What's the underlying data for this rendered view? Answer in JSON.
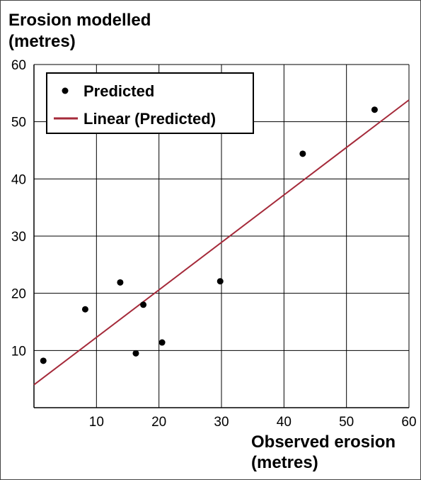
{
  "chart_data": {
    "type": "scatter",
    "ylabel_lines": [
      "Erosion modelled",
      "(metres)"
    ],
    "xlabel_lines": [
      "Observed erosion",
      "(metres)"
    ],
    "xlim": [
      0,
      60
    ],
    "ylim": [
      0,
      60
    ],
    "xticks": [
      10,
      20,
      30,
      40,
      50,
      60
    ],
    "yticks": [
      10,
      20,
      30,
      40,
      50,
      60
    ],
    "grid": true,
    "legend_position": "top-left",
    "series": [
      {
        "name": "Predicted",
        "type": "scatter",
        "color": "#000000",
        "points": [
          {
            "x": 1.5,
            "y": 8.2
          },
          {
            "x": 8.2,
            "y": 17.2
          },
          {
            "x": 13.8,
            "y": 21.9
          },
          {
            "x": 16.3,
            "y": 9.5
          },
          {
            "x": 17.5,
            "y": 18.0
          },
          {
            "x": 20.5,
            "y": 11.4
          },
          {
            "x": 29.8,
            "y": 22.1
          },
          {
            "x": 43.0,
            "y": 44.4
          },
          {
            "x": 54.5,
            "y": 52.1
          }
        ]
      },
      {
        "name": "Linear (Predicted)",
        "type": "line",
        "color": "#a52a3a",
        "points": [
          {
            "x": 0,
            "y": 4.0
          },
          {
            "x": 60,
            "y": 53.8
          }
        ]
      }
    ]
  }
}
